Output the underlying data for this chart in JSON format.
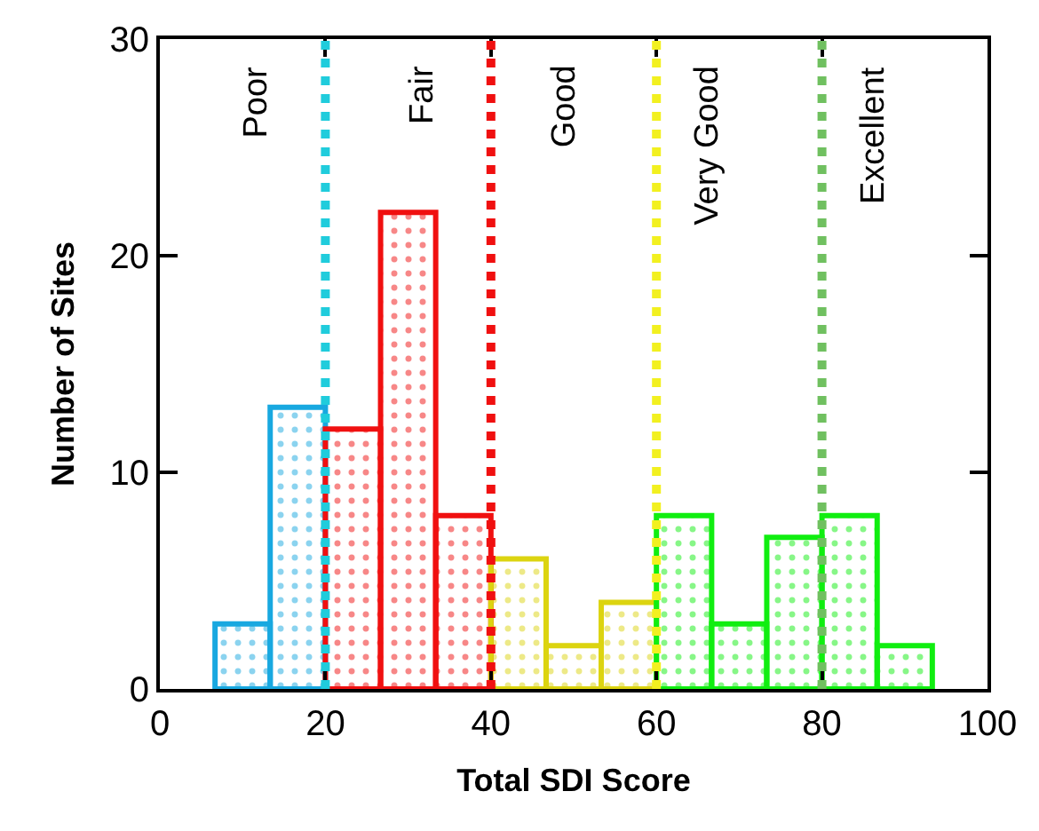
{
  "chart_data": {
    "type": "histogram",
    "xlabel": "Total SDI Score",
    "ylabel": "Number of Sites",
    "bins": [
      6.67,
      13.33,
      20,
      26.67,
      33.33,
      40,
      46.67,
      53.33,
      60,
      66.67,
      73.33,
      80,
      86.67,
      93.33
    ],
    "values": [
      3,
      13,
      12,
      22,
      8,
      6,
      2,
      4,
      8,
      3,
      7,
      8,
      2
    ],
    "colors": [
      "#18a8e0",
      "#18a8e0",
      "#f01010",
      "#f01010",
      "#f01010",
      "#dcd410",
      "#dcd410",
      "#dcd410",
      "#10ee10",
      "#10ee10",
      "#10ee10",
      "#10ee10",
      "#10ee10"
    ],
    "xlim": [
      0,
      100
    ],
    "xticks": [
      0,
      20,
      40,
      60,
      80,
      100
    ],
    "ylim": [
      0,
      30
    ],
    "yticks": [
      0,
      10,
      20,
      30
    ],
    "ref_lines": [
      {
        "axis": "x",
        "value": 20,
        "color": "#20ccdc",
        "line_style": "dotted"
      },
      {
        "axis": "x",
        "value": 40,
        "color": "#f01010",
        "line_style": "dotted"
      },
      {
        "axis": "x",
        "value": 60,
        "color": "#f2f020",
        "line_style": "dotted"
      },
      {
        "axis": "x",
        "value": 80,
        "color": "#70c060",
        "line_style": "dotted"
      }
    ],
    "annotations": [
      "Poor",
      "Fair",
      "Good",
      "Very Good",
      "Excellent"
    ]
  }
}
